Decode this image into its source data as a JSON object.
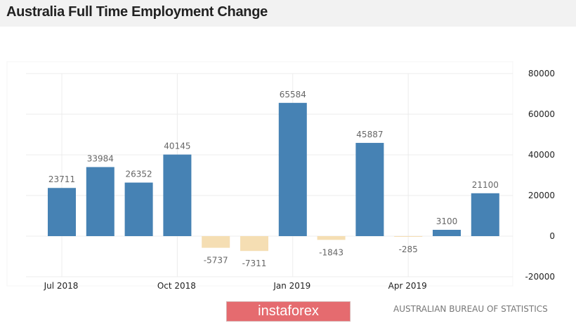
{
  "header": {
    "title": "Australia Full Time Employment Change"
  },
  "chart_data": {
    "type": "bar",
    "title": "Australia Full Time Employment Change",
    "categories": [
      "Jul 2018",
      "Aug 2018",
      "Sep 2018",
      "Oct 2018",
      "Nov 2018",
      "Dec 2018",
      "Jan 2019",
      "Feb 2019",
      "Mar 2019",
      "Apr 2019",
      "May 2019",
      "Jun 2019"
    ],
    "values": [
      23711,
      33984,
      26352,
      40145,
      -5737,
      -7311,
      65584,
      -1843,
      45887,
      -285,
      3100,
      21100
    ],
    "x_tick_labels": [
      {
        "label": "Jul 2018",
        "index": 0
      },
      {
        "label": "Oct 2018",
        "index": 3
      },
      {
        "label": "Jan 2019",
        "index": 6
      },
      {
        "label": "Apr 2019",
        "index": 9
      }
    ],
    "y_ticks": [
      80000,
      60000,
      40000,
      20000,
      0,
      -20000
    ],
    "ylim": [
      -20000,
      80000
    ],
    "xlabel": "",
    "ylabel": "",
    "grid": true,
    "colors": {
      "positive": "#4682b4",
      "negative": "#f5deb3"
    }
  },
  "footer": {
    "brand": "instaforex",
    "source": "AUSTRALIAN BUREAU OF STATISTICS"
  }
}
